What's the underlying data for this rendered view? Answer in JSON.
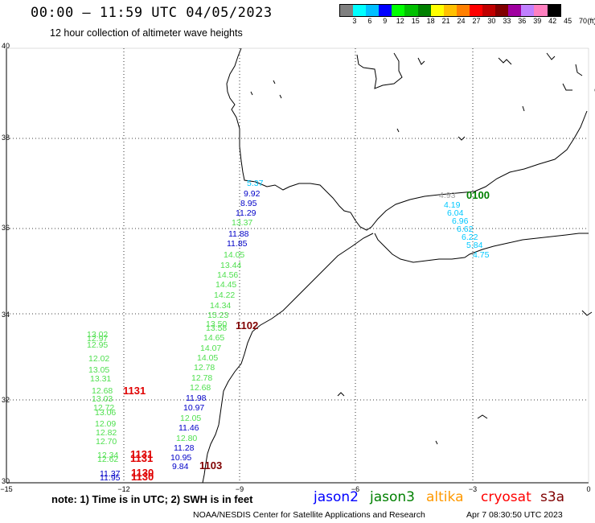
{
  "title": "00:00 – 11:59 UTC 04/05/2023",
  "subtitle": "12 hour collection of altimeter wave heights",
  "colorbar": {
    "unit_label": "(ft)",
    "labels": [
      "3",
      "6",
      "9",
      "12",
      "15",
      "18",
      "21",
      "24",
      "27",
      "30",
      "33",
      "36",
      "39",
      "42",
      "45",
      "70"
    ],
    "colors": [
      "#808080",
      "#00ffff",
      "#00bfff",
      "#0000ff",
      "#00ff00",
      "#00c000",
      "#008000",
      "#ffff00",
      "#ffc000",
      "#ff8000",
      "#ff0000",
      "#c00000",
      "#800000",
      "#a000a0",
      "#c080ff",
      "#ff80c0",
      "#000000"
    ]
  },
  "map": {
    "lat_labels": [
      "40",
      "38",
      "36",
      "34",
      "32",
      "30"
    ],
    "lon_labels": [
      "−15",
      "−12",
      "−9",
      "−6",
      "−3",
      "0"
    ]
  },
  "observations": [
    {
      "text": "5.37",
      "color": "#00c8ff"
    },
    {
      "text": "9.92",
      "color": "#0000c8"
    },
    {
      "text": "8.95",
      "color": "#0000c8"
    },
    {
      "text": "11.29",
      "color": "#0000c8"
    },
    {
      "text": "13.37",
      "color": "#50e050"
    },
    {
      "text": "11.88",
      "color": "#0000c8"
    },
    {
      "text": "11.85",
      "color": "#0000c8"
    },
    {
      "text": "14.05",
      "color": "#50e050"
    },
    {
      "text": "13.44",
      "color": "#50e050"
    },
    {
      "text": "14.56",
      "color": "#50e050"
    },
    {
      "text": "14.45",
      "color": "#50e050"
    },
    {
      "text": "14.22",
      "color": "#50e050"
    },
    {
      "text": "14.34",
      "color": "#50e050"
    },
    {
      "text": "15.23",
      "color": "#50e050"
    },
    {
      "text": "13.50",
      "color": "#50e050"
    },
    {
      "text": "13.58",
      "color": "#50e050"
    },
    {
      "text": "14.65",
      "color": "#50e050"
    },
    {
      "text": "14.07",
      "color": "#50e050"
    },
    {
      "text": "14.05",
      "color": "#50e050"
    },
    {
      "text": "12.78",
      "color": "#50e050"
    },
    {
      "text": "12.78",
      "color": "#50e050"
    },
    {
      "text": "12.68",
      "color": "#50e050"
    },
    {
      "text": "11.98",
      "color": "#0000c8"
    },
    {
      "text": "10.97",
      "color": "#0000c8"
    },
    {
      "text": "12.05",
      "color": "#50e050"
    },
    {
      "text": "11.46",
      "color": "#0000c8"
    },
    {
      "text": "12.80",
      "color": "#50e050"
    },
    {
      "text": "11.28",
      "color": "#0000c8"
    },
    {
      "text": "10.95",
      "color": "#0000c8"
    },
    {
      "text": "9.84",
      "color": "#0000c8"
    },
    {
      "text": "13.02",
      "color": "#50e050"
    },
    {
      "text": "12.97",
      "color": "#50e050"
    },
    {
      "text": "12.95",
      "color": "#50e050"
    },
    {
      "text": "12.02",
      "color": "#50e050"
    },
    {
      "text": "13.05",
      "color": "#50e050"
    },
    {
      "text": "13.31",
      "color": "#50e050"
    },
    {
      "text": "12.68",
      "color": "#50e050"
    },
    {
      "text": "13.03",
      "color": "#50e050"
    },
    {
      "text": "12.72",
      "color": "#50e050"
    },
    {
      "text": "13.06",
      "color": "#50e050"
    },
    {
      "text": "12.09",
      "color": "#50e050"
    },
    {
      "text": "12.82",
      "color": "#50e050"
    },
    {
      "text": "12.70",
      "color": "#50e050"
    },
    {
      "text": "12.34",
      "color": "#50e050"
    },
    {
      "text": "12.62",
      "color": "#50e050"
    },
    {
      "text": "11.37",
      "color": "#0000c8"
    },
    {
      "text": "11.95",
      "color": "#0000c8"
    },
    {
      "text": "4.93",
      "color": "#a0a0a0"
    },
    {
      "text": "4.19",
      "color": "#00c8ff"
    },
    {
      "text": "6.04",
      "color": "#00c8ff"
    },
    {
      "text": "6.96",
      "color": "#00c8ff"
    },
    {
      "text": "6.62",
      "color": "#00c8ff"
    },
    {
      "text": "6.22",
      "color": "#00c8ff"
    },
    {
      "text": "5.84",
      "color": "#00c8ff"
    },
    {
      "text": "4.75",
      "color": "#00c8ff"
    }
  ],
  "time_markers": [
    {
      "text": "0100",
      "color": "#008000"
    },
    {
      "text": "1102",
      "color": "#800000"
    },
    {
      "text": "1131",
      "color": "#e00000"
    },
    {
      "text": "1131",
      "color": "#e00000"
    },
    {
      "text": "1131",
      "color": "#e00000"
    },
    {
      "text": "1130",
      "color": "#e00000"
    },
    {
      "text": "1130",
      "color": "#e00000"
    },
    {
      "text": "1103",
      "color": "#800000"
    }
  ],
  "note": "note: 1) Time is in UTC; 2) SWH is in feet",
  "legend": [
    {
      "text": "jason2",
      "color": "#0000ff"
    },
    {
      "text": "jason3",
      "color": "#008000"
    },
    {
      "text": "altika",
      "color": "#ff9900"
    },
    {
      "text": "cryosat",
      "color": "#ff0000"
    },
    {
      "text": "s3a",
      "color": "#800000"
    }
  ],
  "credit": "NOAA/NESDIS Center for Satellite Applications and Research",
  "credit_time": "Apr  7 08:30:50 UTC 2023"
}
